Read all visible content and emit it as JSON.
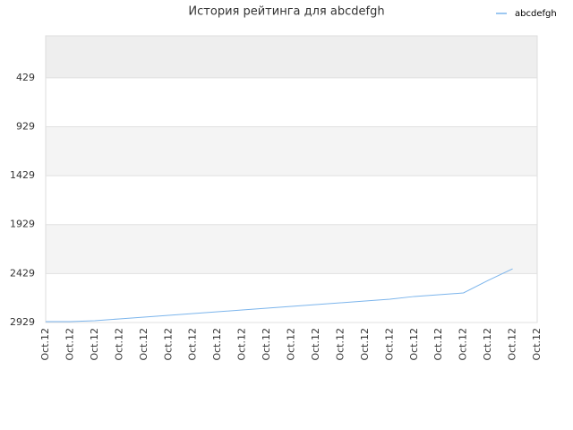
{
  "chart_data": {
    "type": "line",
    "title": "История рейтинга для abcdefgh",
    "categories": [
      "Oct.12",
      "Oct.12",
      "Oct.12",
      "Oct.12",
      "Oct.12",
      "Oct.12",
      "Oct.12",
      "Oct.12",
      "Oct.12",
      "Oct.12",
      "Oct.12",
      "Oct.12",
      "Oct.12",
      "Oct.12",
      "Oct.12",
      "Oct.12",
      "Oct.12",
      "Oct.12",
      "Oct.12",
      "Oct.12",
      "Oct.12"
    ],
    "series": [
      {
        "name": "abcdefgh",
        "color": "#7cb5ec",
        "values": [
          2920,
          2920,
          2911,
          2892,
          2874,
          2856,
          2837,
          2819,
          2801,
          2783,
          2764,
          2746,
          2728,
          2709,
          2691,
          2663,
          2645,
          2627,
          2499,
          2380,
          null
        ]
      }
    ],
    "ylim": [
      2929,
      0
    ],
    "yticks": [
      429,
      929,
      1429,
      1929,
      2429,
      2929
    ],
    "grid": true,
    "legend": "top-right"
  }
}
